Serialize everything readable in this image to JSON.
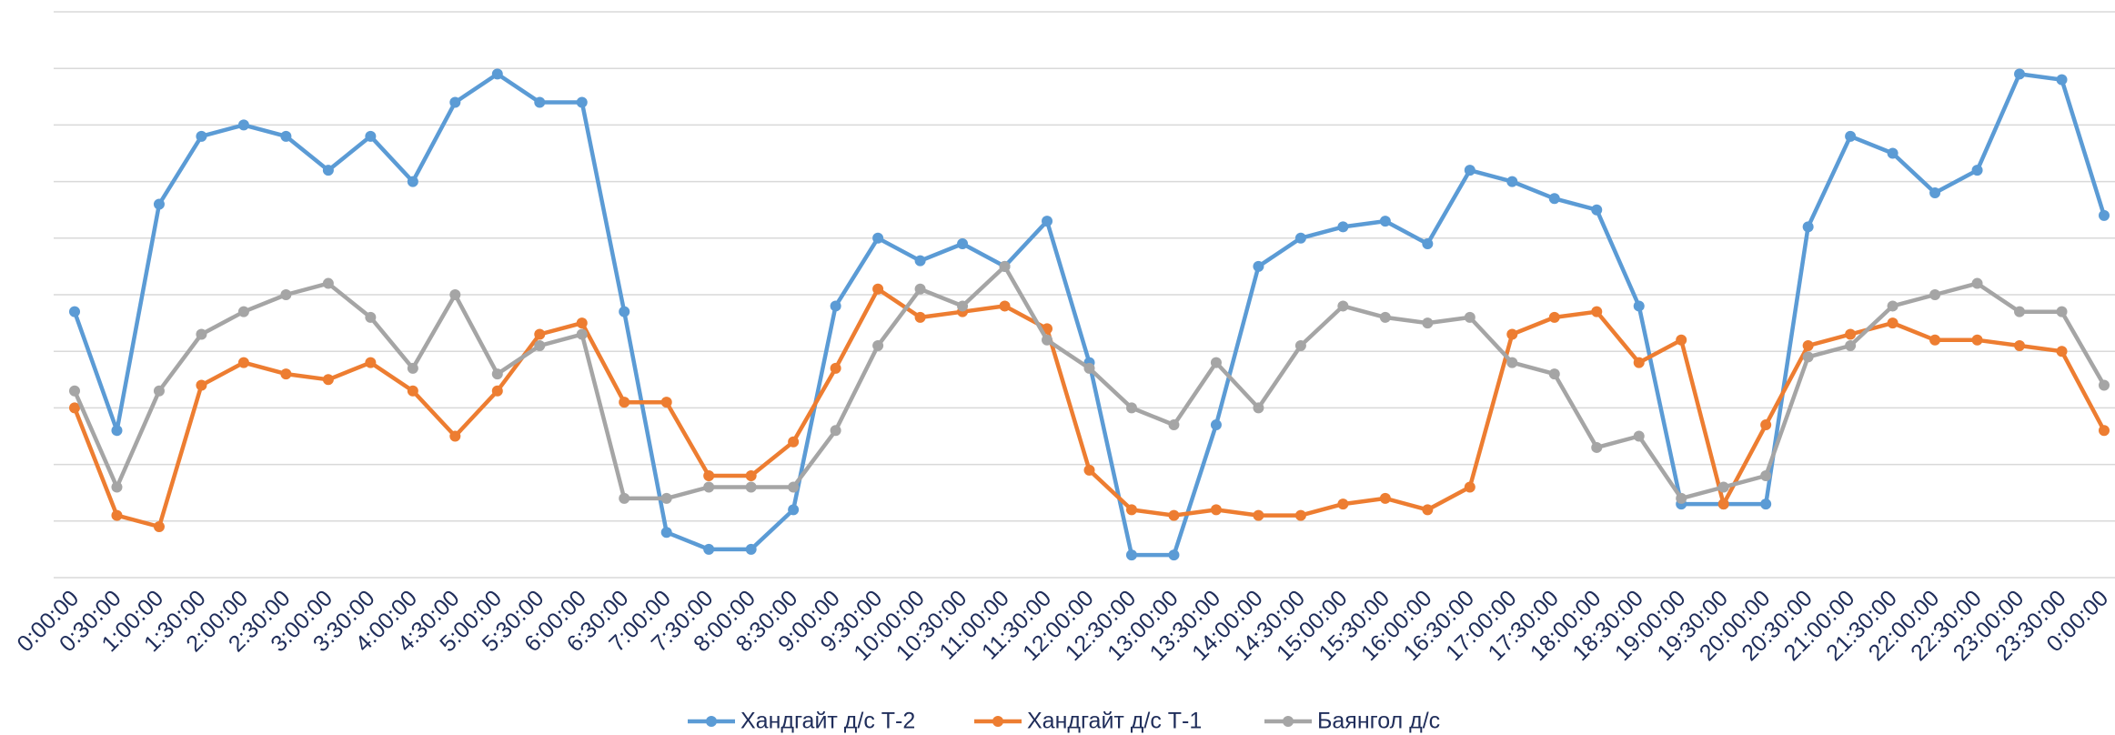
{
  "chart_data": {
    "type": "line",
    "categories": [
      "0:00:00",
      "0:30:00",
      "1:00:00",
      "1:30:00",
      "2:00:00",
      "2:30:00",
      "3:00:00",
      "3:30:00",
      "4:00:00",
      "4:30:00",
      "5:00:00",
      "5:30:00",
      "6:00:00",
      "6:30:00",
      "7:00:00",
      "7:30:00",
      "8:00:00",
      "8:30:00",
      "9:00:00",
      "9:30:00",
      "10:00:00",
      "10:30:00",
      "11:00:00",
      "11:30:00",
      "12:00:00",
      "12:30:00",
      "13:00:00",
      "13:30:00",
      "14:00:00",
      "14:30:00",
      "15:00:00",
      "15:30:00",
      "16:00:00",
      "16:30:00",
      "17:00:00",
      "17:30:00",
      "18:00:00",
      "18:30:00",
      "19:00:00",
      "19:30:00",
      "20:00:00",
      "20:30:00",
      "21:00:00",
      "21:30:00",
      "22:00:00",
      "22:30:00",
      "23:00:00",
      "23:30:00",
      "0:00:00"
    ],
    "series": [
      {
        "name": "Хандгайт д/с Т-2",
        "color": "#5b9bd5",
        "values": [
          4.7,
          2.6,
          6.6,
          7.8,
          8.0,
          7.8,
          7.2,
          7.8,
          7.0,
          8.4,
          8.9,
          8.4,
          8.4,
          4.7,
          0.8,
          0.5,
          0.5,
          1.2,
          4.8,
          6.0,
          5.6,
          5.9,
          5.5,
          6.3,
          3.8,
          0.4,
          0.4,
          2.7,
          5.5,
          6.0,
          6.2,
          6.3,
          5.9,
          7.2,
          7.0,
          6.7,
          6.5,
          4.8,
          1.3,
          1.3,
          1.3,
          6.2,
          7.8,
          7.5,
          6.8,
          7.2,
          8.9,
          8.8,
          6.4
        ]
      },
      {
        "name": "Хандгайт д/с Т-1",
        "color": "#ed7d31",
        "values": [
          3.0,
          1.1,
          0.9,
          3.4,
          3.8,
          3.6,
          3.5,
          3.8,
          3.3,
          2.5,
          3.3,
          4.3,
          4.5,
          3.1,
          3.1,
          1.8,
          1.8,
          2.4,
          3.7,
          5.1,
          4.6,
          4.7,
          4.8,
          4.4,
          1.9,
          1.2,
          1.1,
          1.2,
          1.1,
          1.1,
          1.3,
          1.4,
          1.2,
          1.6,
          4.3,
          4.6,
          4.7,
          3.8,
          4.2,
          1.3,
          2.7,
          4.1,
          4.3,
          4.5,
          4.2,
          4.2,
          4.1,
          4.0,
          2.6
        ]
      },
      {
        "name": "Баянгол д/с",
        "color": "#a5a5a5",
        "values": [
          3.3,
          1.6,
          3.3,
          4.3,
          4.7,
          5.0,
          5.2,
          4.6,
          3.7,
          5.0,
          3.6,
          4.1,
          4.3,
          1.4,
          1.4,
          1.6,
          1.6,
          1.6,
          2.6,
          4.1,
          5.1,
          4.8,
          5.5,
          4.2,
          3.7,
          3.0,
          2.7,
          3.8,
          3.0,
          4.1,
          4.8,
          4.6,
          4.5,
          4.6,
          3.8,
          3.6,
          2.3,
          2.5,
          1.4,
          1.6,
          1.8,
          3.9,
          4.1,
          4.8,
          5.0,
          5.2,
          4.7,
          4.7,
          3.4
        ]
      }
    ],
    "ylim": [
      0,
      10
    ],
    "yticks": [
      0,
      1,
      2,
      3,
      4,
      5,
      6,
      7,
      8,
      9,
      10
    ],
    "grid": true,
    "legend": "bottom"
  }
}
